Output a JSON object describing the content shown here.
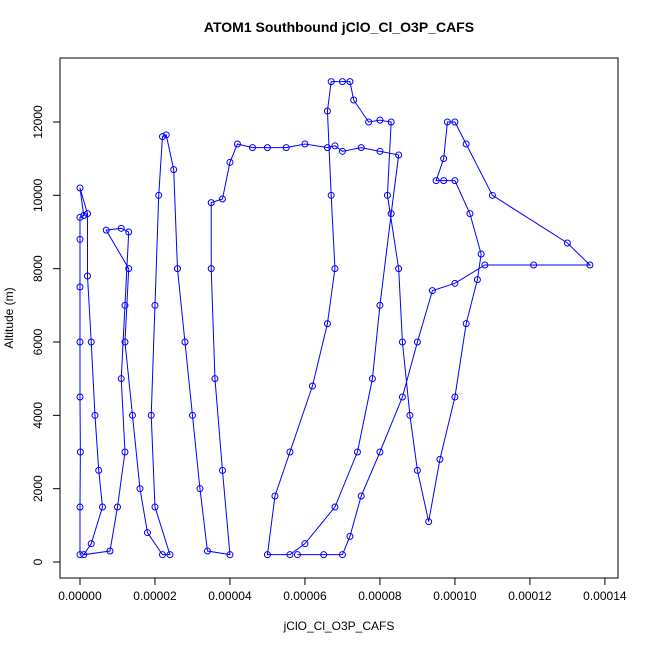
{
  "chart_data": {
    "type": "line",
    "title": "ATOM1 Southbound jClO_Cl_O3P_CAFS",
    "x_label": "jClO_Cl_O3P_CAFS",
    "y_label": "Altitude (m)",
    "xlim": [
      -5.33e-06,
      0.0001435
    ],
    "ylim": [
      -436,
      13745
    ],
    "xticks": [
      {
        "value": 0,
        "label": "0.00000"
      },
      {
        "value": 2e-05,
        "label": "0.00002"
      },
      {
        "value": 4e-05,
        "label": "0.00004"
      },
      {
        "value": 6e-05,
        "label": "0.00006"
      },
      {
        "value": 8e-05,
        "label": "0.00008"
      },
      {
        "value": 0.0001,
        "label": "0.00010"
      },
      {
        "value": 0.00012,
        "label": "0.00012"
      },
      {
        "value": 0.00014,
        "label": "0.00014"
      }
    ],
    "yticks": [
      0,
      2000,
      4000,
      6000,
      8000,
      10000,
      12000
    ],
    "x": [
      0,
      0,
      1e-07,
      0,
      0,
      0,
      0,
      0,
      1e-06,
      0,
      2e-06,
      2e-06,
      3e-06,
      4e-06,
      5e-06,
      6e-06,
      3e-06,
      1e-06,
      8e-06,
      1e-05,
      1.2e-05,
      1.1e-05,
      1.2e-05,
      1.3e-05,
      1.1e-05,
      7e-06,
      1.3e-05,
      1.2e-05,
      1.4e-05,
      1.6e-05,
      1.8e-05,
      2.2e-05,
      2.4e-05,
      2e-05,
      1.9e-05,
      2e-05,
      2.1e-05,
      2.2e-05,
      2.3e-05,
      2.5e-05,
      2.6e-05,
      2.8e-05,
      3e-05,
      3.2e-05,
      3.4e-05,
      4e-05,
      3.8e-05,
      3.6e-05,
      3.5e-05,
      3.5e-05,
      3.8e-05,
      4e-05,
      4.2e-05,
      4.6e-05,
      5e-05,
      5.5e-05,
      6e-05,
      6.6e-05,
      6.8e-05,
      7e-05,
      7.5e-05,
      8e-05,
      8.5e-05,
      8.3e-05,
      8e-05,
      7.8e-05,
      7.4e-05,
      6.8e-05,
      6e-05,
      5.6e-05,
      5e-05,
      5.2e-05,
      5.6e-05,
      6.2e-05,
      6.6e-05,
      6.8e-05,
      6.7e-05,
      6.6e-05,
      6.7e-05,
      7e-05,
      7.2e-05,
      7.3e-05,
      7.7e-05,
      8e-05,
      8.3e-05,
      8.2e-05,
      8.5e-05,
      8.6e-05,
      8.8e-05,
      9e-05,
      9.3e-05,
      9.6e-05,
      0.0001,
      0.000103,
      0.000106,
      0.000107,
      0.000104,
      0.0001,
      9.7e-05,
      9.5e-05,
      9.7e-05,
      9.8e-05,
      0.0001,
      0.000103,
      0.00011,
      0.00013,
      0.000136,
      0.000121,
      0.000108,
      0.0001,
      9.4e-05,
      9e-05,
      8.6e-05,
      8e-05,
      7.5e-05,
      7.2e-05,
      7e-05,
      6.5e-05,
      5.8e-05
    ],
    "series": [
      {
        "color": "#0000ff",
        "values": [
          200,
          1500,
          3000,
          4500,
          6000,
          7500,
          8800,
          9400,
          9450,
          10200,
          9500,
          7800,
          6000,
          4000,
          2500,
          1500,
          500,
          200,
          300,
          1500,
          3000,
          5000,
          7000,
          9000,
          9100,
          9050,
          8000,
          6000,
          4000,
          2000,
          800,
          200,
          200,
          1500,
          4000,
          7000,
          10000,
          11600,
          11650,
          10700,
          8000,
          6000,
          4000,
          2000,
          300,
          200,
          2500,
          5000,
          8000,
          9800,
          9900,
          10900,
          11400,
          11300,
          11300,
          11300,
          11400,
          11300,
          11350,
          11200,
          11300,
          11200,
          11100,
          9500,
          7000,
          5000,
          3000,
          1500,
          500,
          200,
          200,
          1800,
          3000,
          4800,
          6500,
          8000,
          10000,
          12300,
          13100,
          13100,
          13100,
          12600,
          12000,
          12050,
          12000,
          10000,
          8000,
          6000,
          4000,
          2500,
          1100,
          2800,
          4500,
          6500,
          7700,
          8400,
          9500,
          10400,
          10400,
          10400,
          11000,
          12000,
          12000,
          11400,
          10000,
          8700,
          8100,
          8100,
          8100,
          7600,
          7400,
          6000,
          4500,
          3000,
          1800,
          700,
          200,
          200,
          200
        ]
      }
    ]
  }
}
